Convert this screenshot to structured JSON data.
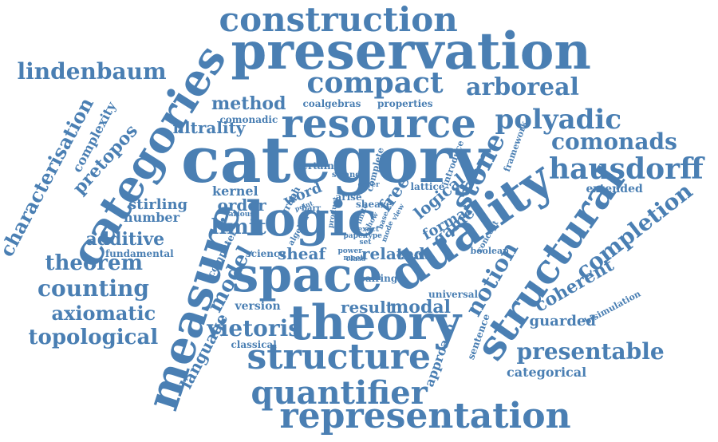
{
  "word_cloud": {
    "color": "#4a7fb3",
    "words": [
      "construction",
      "preservation",
      "lindenbaum",
      "compact",
      "arboreal",
      "categories",
      "resource",
      "method",
      "polyadic",
      "comonads",
      "hausdorff",
      "category",
      "logic",
      "characterisation",
      "complexity",
      "pretopos",
      "filtrality",
      "coalgebras",
      "properties",
      "comonadic",
      "framework",
      "stone",
      "duality",
      "extended",
      "completion",
      "structural",
      "measure",
      "space",
      "theory",
      "structure",
      "quantifier",
      "representation",
      "counting",
      "theorem",
      "additive",
      "axiomatic",
      "topological",
      "fundamental",
      "stirling",
      "number",
      "kernel",
      "order",
      "limit",
      "model",
      "language",
      "vietoris",
      "sheaf",
      "related",
      "game",
      "formal",
      "notion",
      "coherent",
      "modal",
      "result",
      "version",
      "classical",
      "presentable",
      "categorical",
      "guarded",
      "bisimulation",
      "universal",
      "sentence",
      "approach",
      "computer",
      "science",
      "word",
      "graph",
      "arise",
      "sheave",
      "free",
      "lattice",
      "logical",
      "introduce",
      "complete",
      "certain",
      "strand",
      "cover",
      "boolean",
      "concept",
      "pairing",
      "variant",
      "power",
      "paper",
      "type",
      "algebra",
      "point",
      "various",
      "barr",
      "finite",
      "show",
      "base",
      "exact",
      "class",
      "meet",
      "product",
      "view",
      "mode",
      "set"
    ]
  }
}
